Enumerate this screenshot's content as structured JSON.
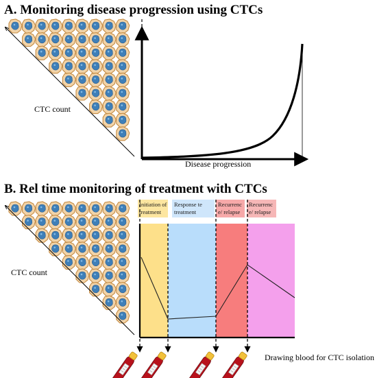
{
  "panel_a": {
    "title": "A. Monitoring disease progression using CTCs",
    "y_label": "CTC count",
    "x_label": "Disease progression"
  },
  "panel_b": {
    "title": "B. Rel time monitoring of treatment with CTCs",
    "y_label": "CTC count",
    "phases": [
      {
        "label_lines": [
          "Initiation of",
          "treatment"
        ],
        "color": "#fde08a",
        "header_color": "#fde6a0"
      },
      {
        "label_lines": [
          "Response te",
          "treatment"
        ],
        "color": "#b9ddfb",
        "header_color": "#cfe6fb"
      },
      {
        "label_lines": [
          "Recurrenc",
          "e/ relapse"
        ],
        "color": "#f77d7d",
        "header_color": "#f7a9a9"
      },
      {
        "label_lines": [
          "Recurrenc",
          "e/ relapse"
        ],
        "color": "#f4a0ec",
        "header_color": "#f6b7b7"
      }
    ],
    "blood_draw_label": "Drawing blood for CTC isolation",
    "tube_count": 4
  },
  "colors": {
    "cell_outer": "#f1d3a8",
    "cell_rim": "#c58b42",
    "nucleus": "#3f7fb8",
    "nucleus_dark": "#2a5d8f",
    "tube_body": "#b8121c",
    "tube_cap": "#f2c13a"
  }
}
